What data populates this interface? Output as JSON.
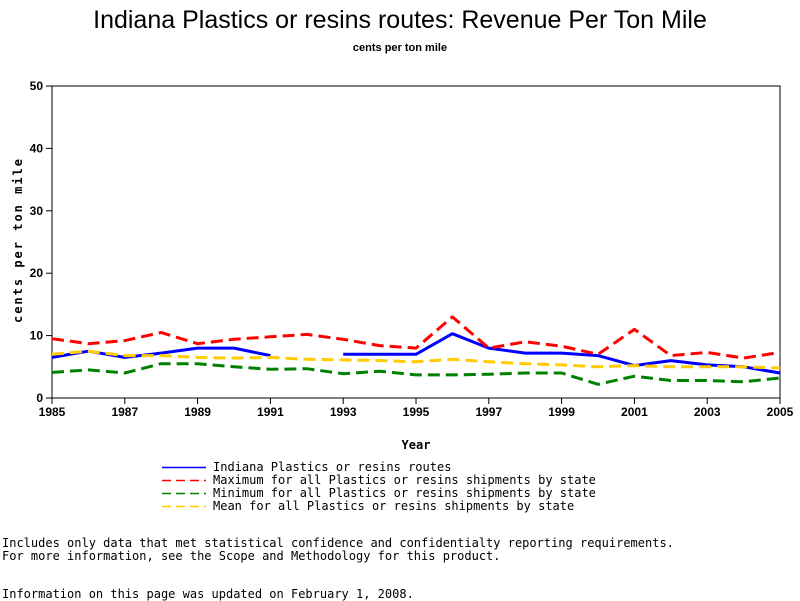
{
  "title": "Indiana Plastics or resins routes: Revenue Per Ton Mile",
  "subtitle": "cents per ton mile",
  "chart_data": {
    "type": "line",
    "title": "Indiana Plastics or resins routes: Revenue Per Ton Mile",
    "subtitle": "cents per ton mile",
    "xlabel": "Year",
    "ylabel": "cents per ton mile",
    "xlim": [
      1985,
      2005
    ],
    "ylim": [
      0,
      50
    ],
    "xticks": [
      "1985",
      "1987",
      "1989",
      "1991",
      "1993",
      "1995",
      "1997",
      "1999",
      "2001",
      "2003",
      "2005"
    ],
    "yticks": [
      "0",
      "10",
      "20",
      "30",
      "40",
      "50"
    ],
    "grid": false,
    "legend_position": "bottom",
    "x": [
      1985,
      1986,
      1987,
      1988,
      1989,
      1990,
      1991,
      1992,
      1993,
      1994,
      1995,
      1996,
      1997,
      1998,
      1999,
      2000,
      2001,
      2002,
      2003,
      2004,
      2005
    ],
    "series": [
      {
        "name": "Indiana Plastics or resins routes",
        "color": "#0000ff",
        "dash": "solid",
        "values": [
          6.5,
          7.5,
          6.5,
          7.2,
          8.0,
          8.0,
          6.8,
          null,
          7.0,
          7.0,
          7.0,
          10.3,
          8.0,
          7.2,
          7.2,
          6.8,
          5.2,
          6.0,
          5.3,
          5.0,
          4.0
        ]
      },
      {
        "name": "Maximum for all Plastics or resins shipments by state",
        "color": "#ff0000",
        "dash": "dashed",
        "values": [
          9.5,
          8.7,
          9.2,
          10.5,
          8.7,
          9.4,
          9.8,
          10.2,
          9.4,
          8.4,
          8.0,
          13.0,
          8.0,
          9.0,
          8.3,
          7.0,
          11.0,
          6.8,
          7.3,
          6.4,
          7.3
        ]
      },
      {
        "name": "Minimum for all Plastics or resins shipments by state",
        "color": "#008000",
        "dash": "dashed",
        "values": [
          4.1,
          4.5,
          4.0,
          5.5,
          5.5,
          5.0,
          4.6,
          4.7,
          3.9,
          4.3,
          3.7,
          3.7,
          3.8,
          4.0,
          4.0,
          2.2,
          3.5,
          2.8,
          2.8,
          2.6,
          3.2
        ]
      },
      {
        "name": "Mean for all Plastics or resins shipments by state",
        "color": "#ffcc00",
        "dash": "dashed",
        "values": [
          7.0,
          7.5,
          6.8,
          6.8,
          6.5,
          6.4,
          6.5,
          6.2,
          6.1,
          6.0,
          5.8,
          6.2,
          5.8,
          5.5,
          5.3,
          5.0,
          5.2,
          5.0,
          5.0,
          5.0,
          4.8
        ]
      }
    ]
  },
  "footnotes": [
    "Includes only data that met statistical confidence and confidentialty reporting requirements.",
    "For more information, see the Scope and Methodology for this product.",
    "Information on this page was updated on February 1, 2008."
  ]
}
